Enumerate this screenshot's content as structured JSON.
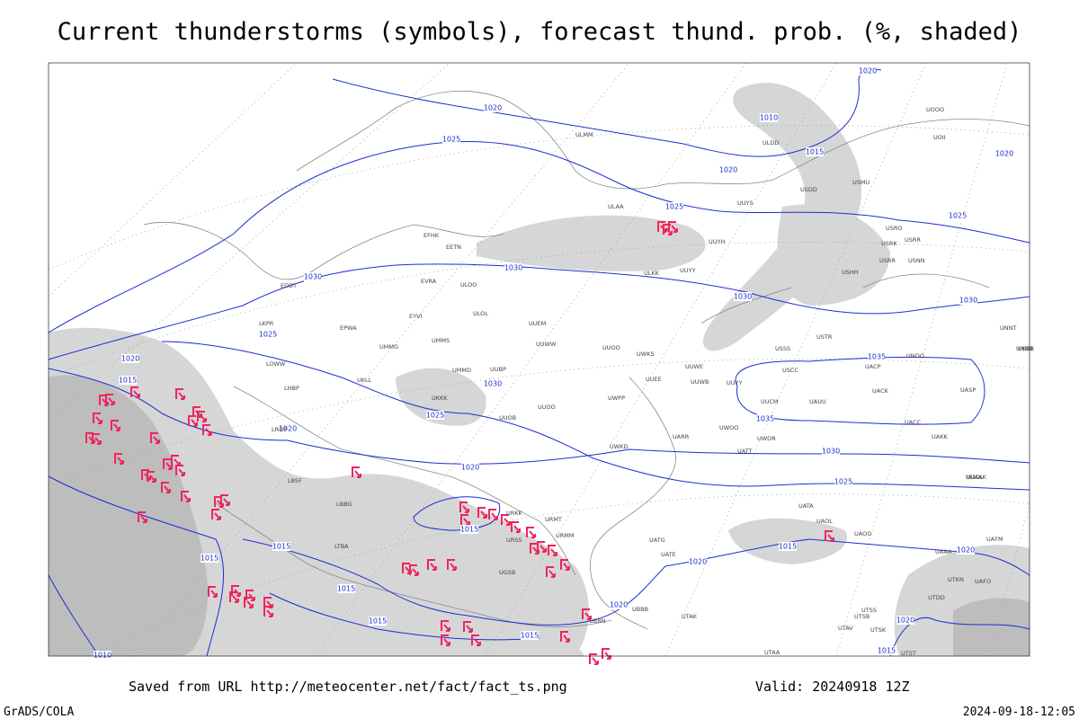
{
  "title": "Current thunderstorms (symbols), forecast thund. prob. (%, shaded)",
  "footer": {
    "saved_from": "Saved from URL http://meteocenter.net/fact/fact_ts.png",
    "valid": "Valid: 20240918 12Z",
    "software": "GrADS/COLA",
    "timestamp": "2024-09-18-12:05"
  },
  "isobar_labels": [
    "1020",
    "1020",
    "1025",
    "1010",
    "1015",
    "1020",
    "1020",
    "1025",
    "1025",
    "1030",
    "1030",
    "1030",
    "1030",
    "1025",
    "1020",
    "1015",
    "1035",
    "1030",
    "1025",
    "1035",
    "1020",
    "1030",
    "1020",
    "1025",
    "1015",
    "1015",
    "1020",
    "1015",
    "1015",
    "1020",
    "1015",
    "1020",
    "1015",
    "1015",
    "1020",
    "1015",
    "1010"
  ],
  "station_labels": [
    "UOOO",
    "UOII",
    "ULMM",
    "ULDD",
    "USDD",
    "USMU",
    "UUYS",
    "ULAA",
    "UUYH",
    "USRO",
    "USRK",
    "USRR",
    "USRR",
    "USNN",
    "USHH",
    "ULKK",
    "UUYY",
    "EFHK",
    "EETN",
    "ULOO",
    "EVRA",
    "EDDT",
    "EPWA",
    "EYVI",
    "ULOL",
    "UUEM",
    "UMMS",
    "UMMG",
    "UUWW",
    "UUOO",
    "UWKS",
    "UUBP",
    "UMMD",
    "UKLL",
    "UUWE",
    "UUWB",
    "UUYY",
    "UUOB",
    "UKKK",
    "UUOO",
    "UWPP",
    "UWKD",
    "UUEE",
    "USSS",
    "USTR",
    "USCC",
    "UNOO",
    "UACP",
    "UACK",
    "UASP",
    "UUCM",
    "UAUU",
    "UWOO",
    "UWOR",
    "UACC",
    "UAKK",
    "UATT",
    "UARR",
    "UUOL",
    "UKBB",
    "LKPR",
    "LOWW",
    "LHBP",
    "LROP",
    "LBSF",
    "LBBG",
    "LTBA",
    "URKK",
    "URMT",
    "URSS",
    "URMM",
    "UGSB",
    "UBBB",
    "UBBN",
    "UATG",
    "UATE",
    "UATA",
    "UAOL",
    "UAOO",
    "UAAA",
    "UAFM",
    "UTAA",
    "UTSS",
    "UTAK",
    "UTAV",
    "UTSB",
    "UTDD",
    "UTSK",
    "UTST",
    "UTKN",
    "UAFO",
    "UNNT",
    "UNBB",
    "UUAAK"
  ]
}
